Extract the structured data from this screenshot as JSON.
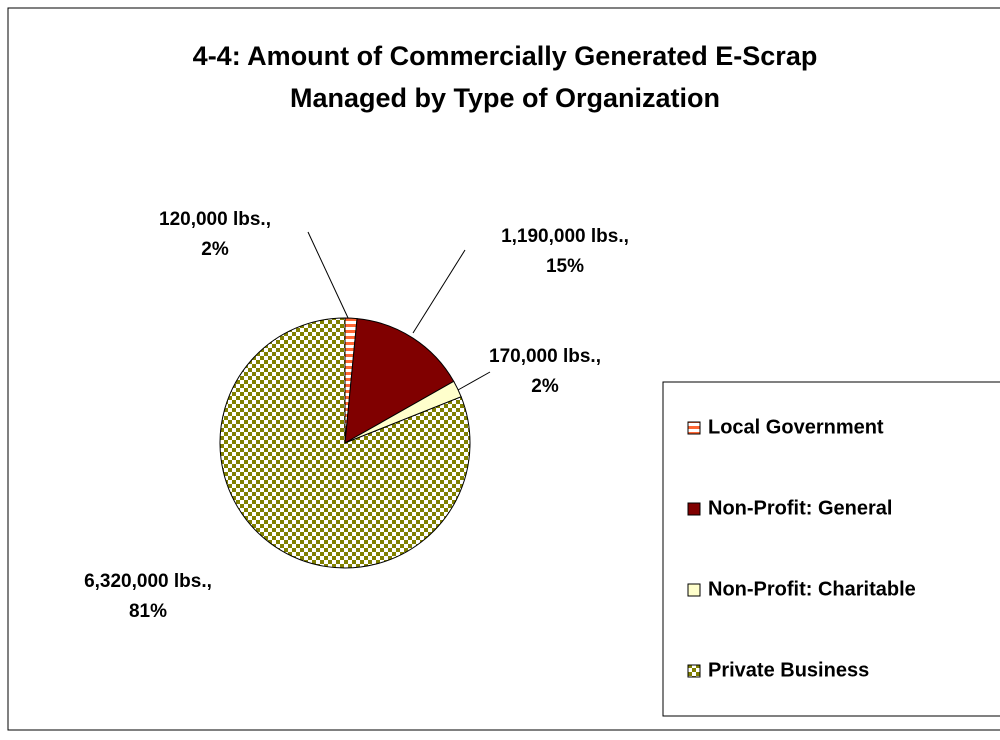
{
  "chart_data": {
    "type": "pie",
    "title": [
      "4-4: Amount of Commercially Generated E-Scrap",
      "Managed by Type of Organization"
    ],
    "categories": [
      "Local Government",
      "Non-Profit: General",
      "Non-Profit: Charitable",
      "Private Business"
    ],
    "values": [
      120000,
      1190000,
      170000,
      6320000
    ],
    "value_labels": [
      [
        "120,000 lbs.,",
        "2%"
      ],
      [
        "1,190,000 lbs.,",
        "15%"
      ],
      [
        "170,000 lbs.,",
        "2%"
      ],
      [
        "6,320,000 lbs.,",
        "81%"
      ]
    ],
    "colors": [
      "#ff6633",
      "#800000",
      "#ffffcc",
      "#808000"
    ],
    "patterns": [
      "horizontal-stripes",
      "solid",
      "solid",
      "checkerboard"
    ],
    "legend": "right"
  }
}
